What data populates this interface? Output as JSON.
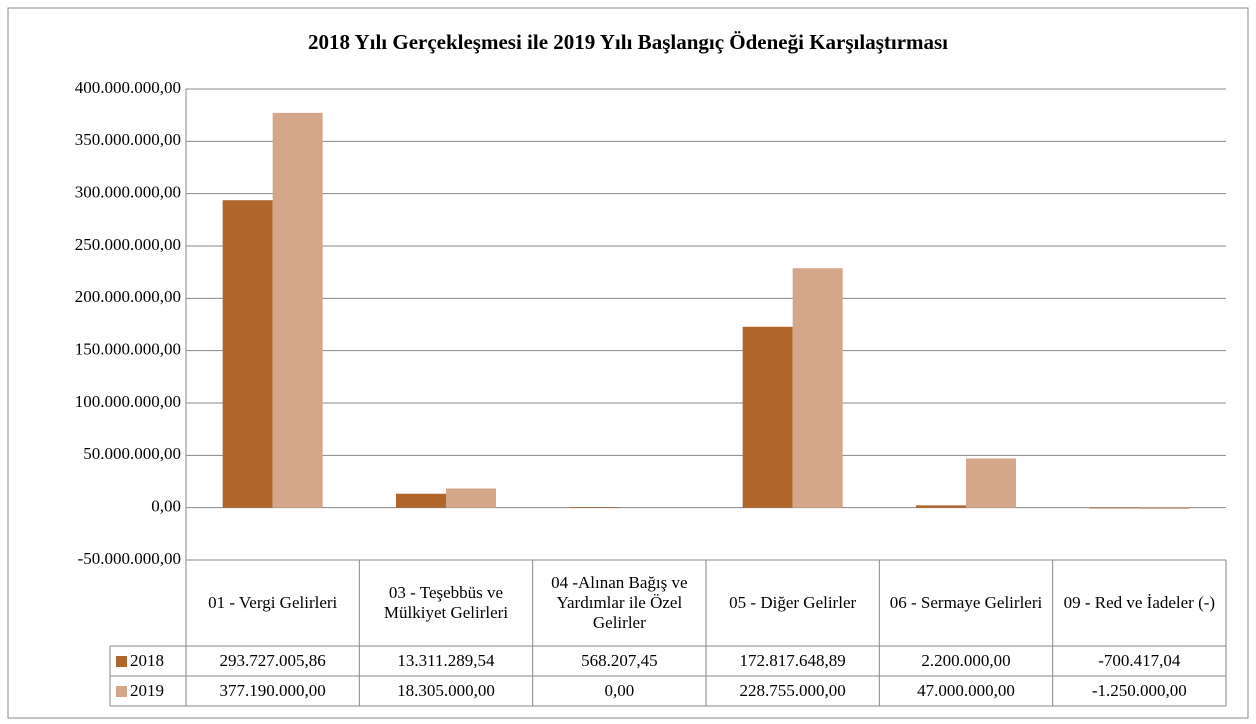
{
  "chart_data": {
    "type": "bar",
    "title": "2018 Yılı Gerçekleşmesi ile 2019 Yılı Başlangıç Ödeneği Karşılaştırması",
    "categories": [
      "01 - Vergi Gelirleri",
      "03 - Teşebbüs ve Mülkiyet Gelirleri",
      "04 -Alınan Bağış ve Yardımlar ile Özel Gelirler",
      "05 - Diğer Gelirler",
      "06 - Sermaye Gelirleri",
      "09 - Red ve İadeler (-)"
    ],
    "series": [
      {
        "name": "2018",
        "color": "#b0652a",
        "values": [
          293727005.86,
          13311289.54,
          568207.45,
          172817648.89,
          2200000,
          -700417.04
        ],
        "value_labels": [
          "293.727.005,86",
          "13.311.289,54",
          "568.207,45",
          "172.817.648,89",
          "2.200.000,00",
          "-700.417,04"
        ]
      },
      {
        "name": "2019",
        "color": "#d4a68a",
        "values": [
          377190000,
          18305000,
          0,
          228755000,
          47000000,
          -1250000
        ],
        "value_labels": [
          "377.190.000,00",
          "18.305.000,00",
          "0,00",
          "228.755.000,00",
          "47.000.000,00",
          "-1.250.000,00"
        ]
      }
    ],
    "ylim": [
      -50000000,
      400000000
    ],
    "yticks": [
      {
        "value": -50000000,
        "label": "-50.000.000,00"
      },
      {
        "value": 0,
        "label": "0,00"
      },
      {
        "value": 50000000,
        "label": "50.000.000,00"
      },
      {
        "value": 100000000,
        "label": "100.000.000,00"
      },
      {
        "value": 150000000,
        "label": "150.000.000,00"
      },
      {
        "value": 200000000,
        "label": "200.000.000,00"
      },
      {
        "value": 250000000,
        "label": "250.000.000,00"
      },
      {
        "value": 300000000,
        "label": "300.000.000,00"
      },
      {
        "value": 350000000,
        "label": "350.000.000,00"
      },
      {
        "value": 400000000,
        "label": "400.000.000,00"
      }
    ],
    "grid": true
  }
}
